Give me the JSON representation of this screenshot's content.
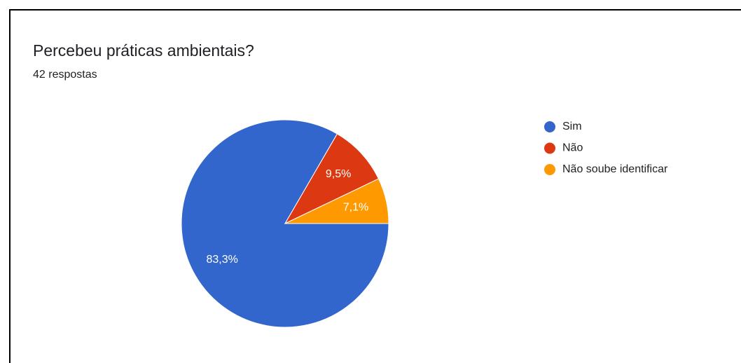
{
  "chart_data": {
    "type": "pie",
    "title": "Percebeu práticas ambientais?",
    "subtitle": "42 respostas",
    "categories": [
      "Sim",
      "Não",
      "Não soube identificar"
    ],
    "values": [
      83.3,
      9.5,
      7.1
    ],
    "value_labels": [
      "83,3%",
      "9,5%",
      "7,1%"
    ],
    "colors": [
      "#3366cc",
      "#dc3912",
      "#ff9900"
    ],
    "legend": "right"
  }
}
